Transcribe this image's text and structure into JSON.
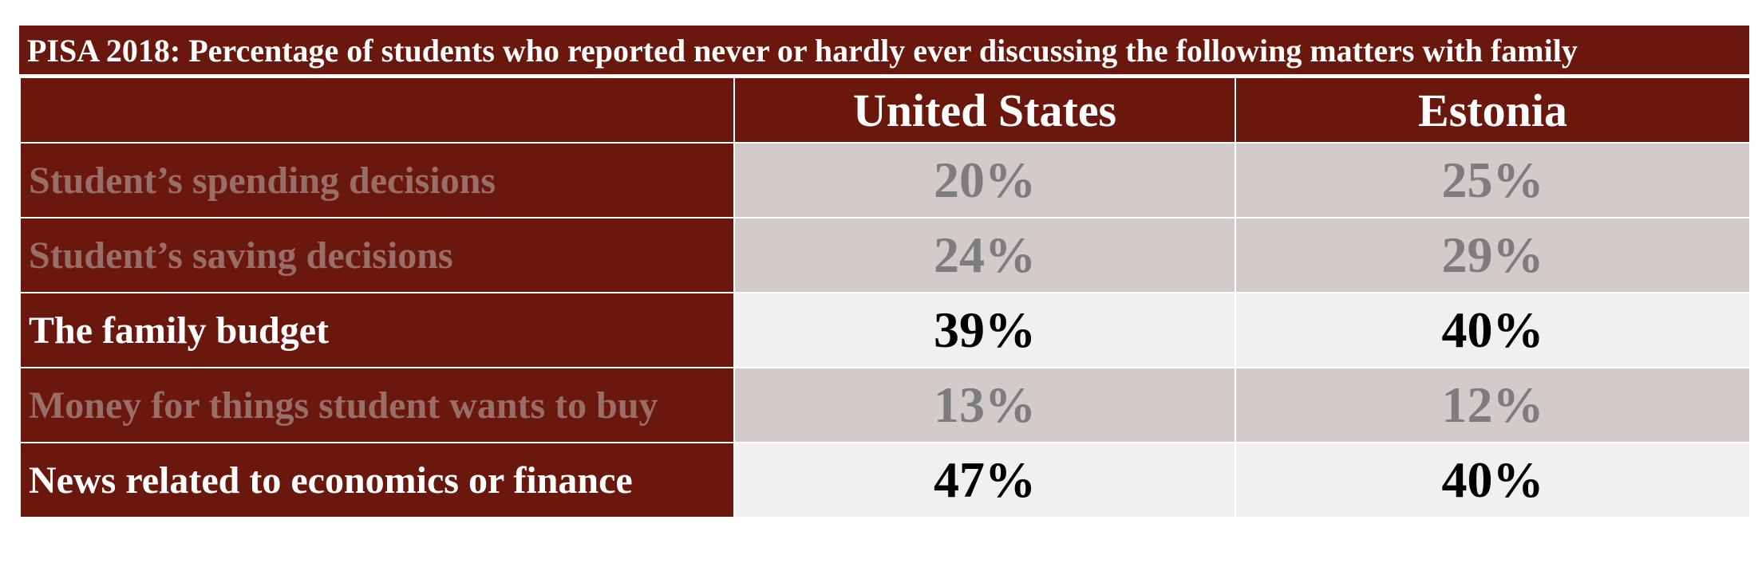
{
  "chart_data": {
    "type": "table",
    "title": "PISA 2018: Percentage of students who reported never or hardly ever discussing the following matters with family",
    "columns": [
      "",
      "United States",
      "Estonia"
    ],
    "rows": [
      {
        "label": "Student’s spending decisions",
        "values": [
          "20%",
          "25%"
        ],
        "style": "muted"
      },
      {
        "label": "Student’s saving decisions",
        "values": [
          "24%",
          "29%"
        ],
        "style": "muted"
      },
      {
        "label": "The family budget",
        "values": [
          "39%",
          "40%"
        ],
        "style": "highlight"
      },
      {
        "label": "Money for things student wants to buy",
        "values": [
          "13%",
          "12%"
        ],
        "style": "muted"
      },
      {
        "label": "News related to economics or finance",
        "values": [
          "47%",
          "40%"
        ],
        "style": "highlight"
      }
    ],
    "series": [
      {
        "name": "United States",
        "values": [
          20,
          24,
          39,
          13,
          47
        ]
      },
      {
        "name": "Estonia",
        "values": [
          25,
          29,
          40,
          12,
          40
        ]
      }
    ]
  },
  "colors": {
    "header_bg": "#6a180e",
    "muted_cell_bg": "#d3cbc9",
    "highlight_cell_bg": "#f0f0f0",
    "muted_text": "#7d7d7d",
    "muted_label_text": "#9a6e68"
  }
}
